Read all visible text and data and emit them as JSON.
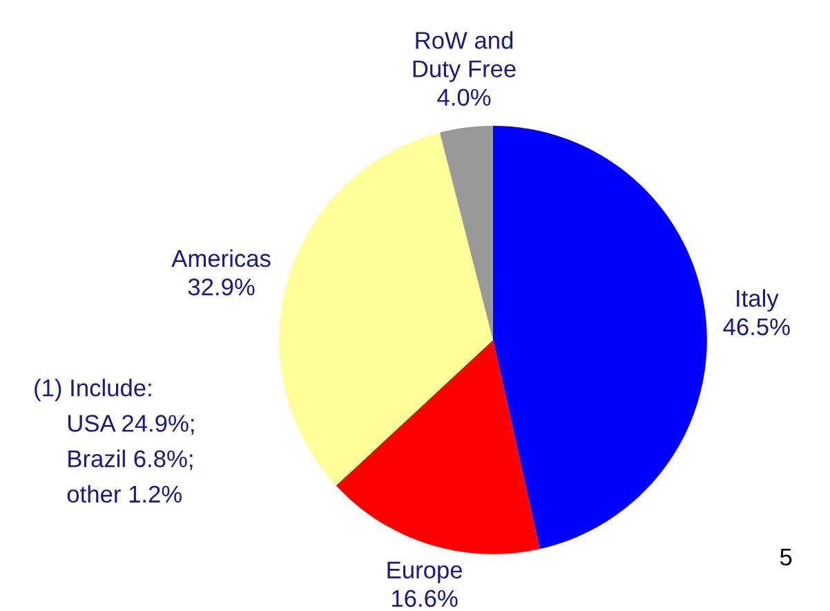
{
  "chart_data": {
    "type": "pie",
    "categories": [
      "Italy",
      "Europe",
      "Americas",
      "RoW and\nDuty Free"
    ],
    "values": [
      46.5,
      16.6,
      32.9,
      4.0
    ],
    "colors": [
      "#0000ff",
      "#ff0000",
      "#ffff99",
      "#999999"
    ],
    "value_labels": [
      "46.5%",
      "16.6%",
      "32.9%",
      "4.0%"
    ],
    "annotations": [
      "(1) Include:\n     USA 24.9%;\n     Brazil 6.8%;\n     other 1.2%",
      "5"
    ],
    "legend": false
  }
}
